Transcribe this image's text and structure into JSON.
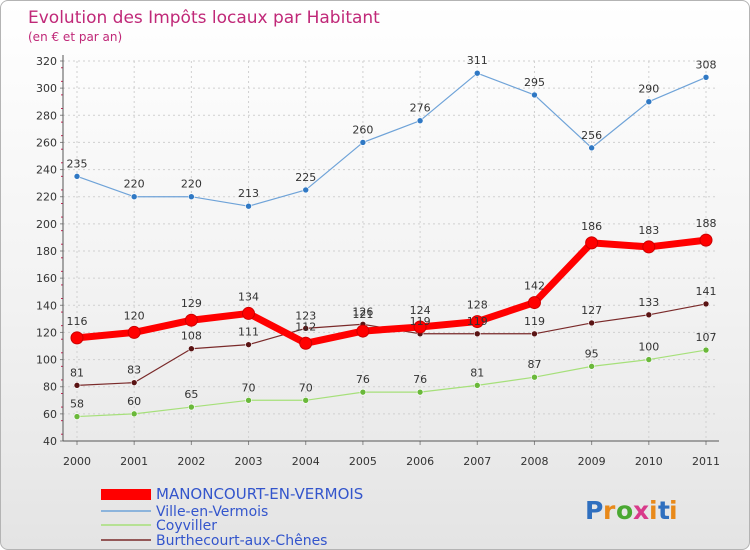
{
  "chart_data": {
    "type": "line",
    "title": "Evolution des Impôts locaux par Habitant",
    "subtitle": "(en € et par an)",
    "xlabel": "",
    "ylabel": "",
    "x": [
      "2000",
      "2001",
      "2002",
      "2003",
      "2004",
      "2005",
      "2006",
      "2007",
      "2008",
      "2009",
      "2010",
      "2011"
    ],
    "ylim": [
      40,
      320
    ],
    "yticks": [
      40,
      60,
      80,
      100,
      120,
      140,
      160,
      180,
      200,
      220,
      240,
      260,
      280,
      300,
      320
    ],
    "grid": true,
    "legend_position": "bottom-left",
    "series": [
      {
        "name": "MANONCOURT-EN-VERMOIS",
        "color": "#ff0000",
        "values": [
          116,
          120,
          129,
          134,
          112,
          121,
          124,
          128,
          142,
          186,
          183,
          188
        ]
      },
      {
        "name": "Ville-en-Vermois",
        "color": "#6fa3d8",
        "values": [
          235,
          220,
          220,
          213,
          225,
          260,
          276,
          311,
          295,
          256,
          290,
          308
        ]
      },
      {
        "name": "Coyviller",
        "color": "#a6e07a",
        "values": [
          58,
          60,
          65,
          70,
          70,
          76,
          76,
          81,
          87,
          95,
          100,
          107
        ]
      },
      {
        "name": "Burthecourt-aux-Chênes",
        "color": "#7a2a2a",
        "values": [
          81,
          83,
          108,
          111,
          123,
          126,
          119,
          119,
          119,
          127,
          133,
          141
        ]
      }
    ]
  },
  "logo": {
    "text": "Proxiti",
    "letters": [
      "P",
      "r",
      "o",
      "x",
      "i",
      "t",
      "i"
    ]
  }
}
